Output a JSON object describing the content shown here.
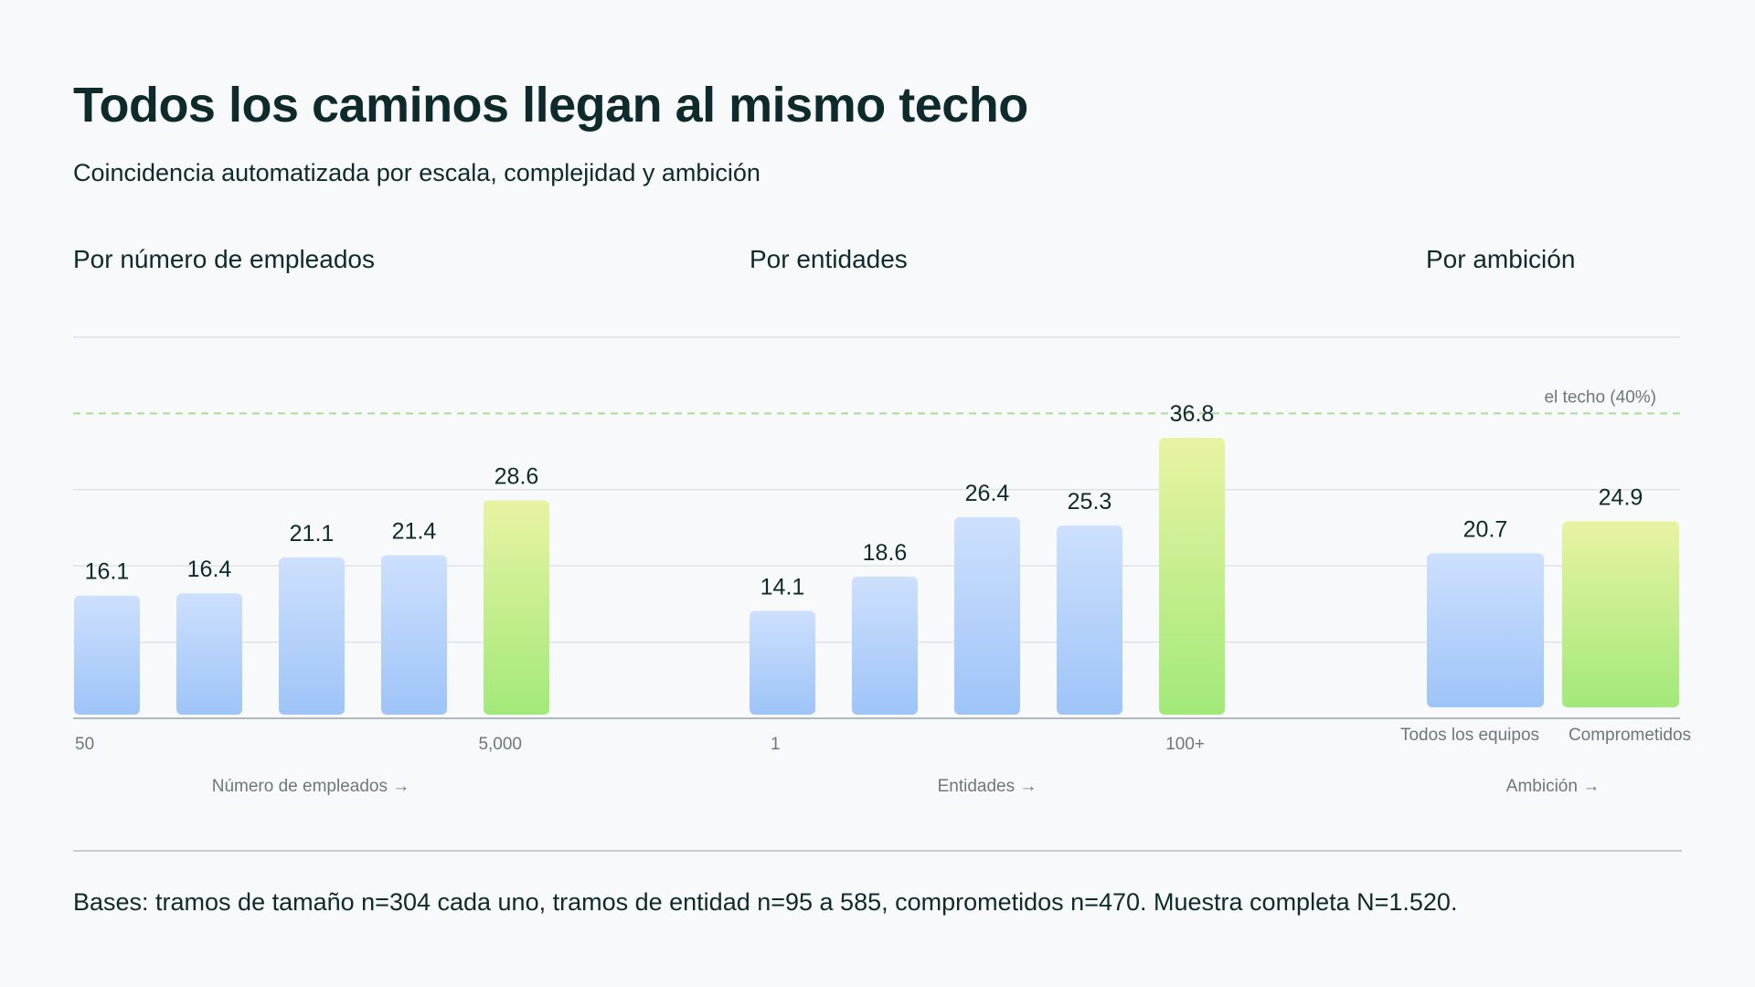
{
  "title": "Todos los caminos llegan al mismo techo",
  "subtitle": "Coincidencia automatizada por escala, complejidad y ambición",
  "footnote": "Bases: tramos de tamaño n=304 cada uno, tramos de entidad n=95 a 585, comprometidos n=470. Muestra completa N=1.520.",
  "colors": {
    "blue_top": "#cde0fd",
    "blue_bottom": "#9ec4f8",
    "green_top": "#e9f3a2",
    "green_bottom": "#a2e97a",
    "ceiling_line": "#a8e08e",
    "grid": "#dfe3e6",
    "axis": "#9aa3a8"
  },
  "chart_data": [
    {
      "type": "bar",
      "title": "Por número de empleados",
      "values": [
        16.1,
        16.4,
        21.1,
        21.4,
        28.6
      ],
      "highlight": [
        false,
        false,
        false,
        false,
        true
      ],
      "tick_labels": [
        "50",
        "",
        "",
        "",
        "5,000"
      ],
      "xlabel": "Número de empleados →",
      "ylim": [
        0,
        50
      ],
      "grid": true
    },
    {
      "type": "bar",
      "title": "Por entidades",
      "values": [
        14.1,
        18.6,
        26.4,
        25.3,
        36.8
      ],
      "highlight": [
        false,
        false,
        false,
        false,
        true
      ],
      "tick_labels": [
        "1",
        "",
        "",
        "",
        "100+"
      ],
      "xlabel": "Entidades →",
      "ylim": [
        0,
        50
      ],
      "grid": true
    },
    {
      "type": "bar",
      "title": "Por ambición",
      "values": [
        20.7,
        24.9
      ],
      "highlight": [
        false,
        true
      ],
      "tick_labels": [
        "Todos los equipos",
        "Comprometidos"
      ],
      "xlabel": "Ambición →",
      "ylim": [
        0,
        50
      ],
      "grid": true
    }
  ],
  "reference_line": {
    "value": 40,
    "label": "el techo (40%)"
  }
}
